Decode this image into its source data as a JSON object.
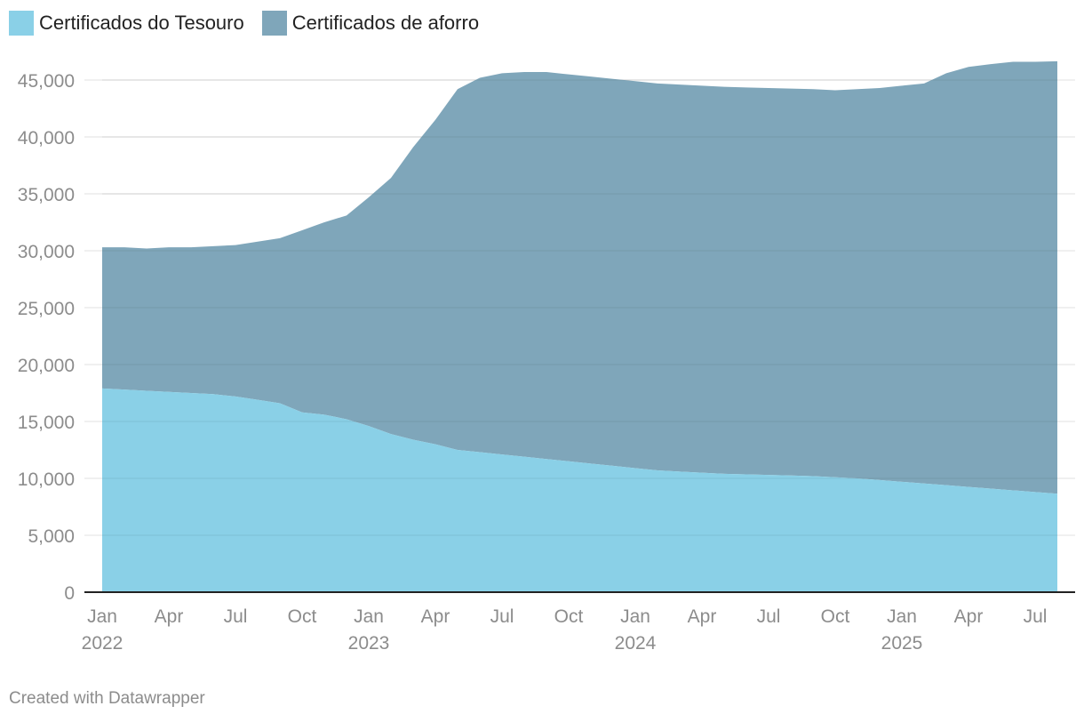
{
  "chart_data": {
    "type": "area",
    "stacked": true,
    "title": "",
    "xlabel": "",
    "ylabel": "",
    "ylim": [
      0,
      47000
    ],
    "grid": true,
    "legend_position": "top-left",
    "x": [
      "2022-01",
      "2022-02",
      "2022-03",
      "2022-04",
      "2022-05",
      "2022-06",
      "2022-07",
      "2022-08",
      "2022-09",
      "2022-10",
      "2022-11",
      "2022-12",
      "2023-01",
      "2023-02",
      "2023-03",
      "2023-04",
      "2023-05",
      "2023-06",
      "2023-07",
      "2023-08",
      "2023-09",
      "2023-10",
      "2023-11",
      "2023-12",
      "2024-01",
      "2024-02",
      "2024-03",
      "2024-04",
      "2024-05",
      "2024-06",
      "2024-07",
      "2024-08",
      "2024-09",
      "2024-10",
      "2024-11",
      "2024-12",
      "2025-01",
      "2025-02",
      "2025-03",
      "2025-04",
      "2025-05",
      "2025-06",
      "2025-07",
      "2025-08"
    ],
    "series": [
      {
        "name": "Certificados do Tesouro",
        "color": "#8ad0e7",
        "values": [
          17900,
          17800,
          17700,
          17600,
          17500,
          17400,
          17200,
          16900,
          16600,
          15800,
          15600,
          15200,
          14600,
          13900,
          13400,
          13000,
          12500,
          12300,
          12100,
          11900,
          11700,
          11500,
          11300,
          11100,
          10900,
          10700,
          10600,
          10500,
          10400,
          10350,
          10300,
          10250,
          10200,
          10100,
          10000,
          9850,
          9700,
          9550,
          9400,
          9250,
          9100,
          8950,
          8800,
          8650
        ]
      },
      {
        "name": "Certificados de aforro",
        "color": "#7fa6ba",
        "values": [
          12400,
          12500,
          12500,
          12700,
          12800,
          13000,
          13300,
          13900,
          14500,
          16000,
          16900,
          17900,
          20100,
          22500,
          25700,
          28500,
          31700,
          32900,
          33500,
          33800,
          34000,
          34000,
          34000,
          34000,
          34000,
          34000,
          34000,
          34000,
          34000,
          34000,
          34000,
          34000,
          34000,
          34000,
          34200,
          34450,
          34800,
          35150,
          36200,
          36900,
          37300,
          37650,
          37800,
          38000
        ]
      }
    ],
    "y_ticks": [
      0,
      5000,
      10000,
      15000,
      20000,
      25000,
      30000,
      35000,
      40000,
      45000
    ],
    "y_tick_labels": [
      "0",
      "5,000",
      "10,000",
      "15,000",
      "20,000",
      "25,000",
      "30,000",
      "35,000",
      "40,000",
      "45,000"
    ],
    "x_ticks": [
      {
        "month": "2022-01",
        "label": "Jan",
        "year": "2022"
      },
      {
        "month": "2022-04",
        "label": "Apr",
        "year": ""
      },
      {
        "month": "2022-07",
        "label": "Jul",
        "year": ""
      },
      {
        "month": "2022-10",
        "label": "Oct",
        "year": ""
      },
      {
        "month": "2023-01",
        "label": "Jan",
        "year": "2023"
      },
      {
        "month": "2023-04",
        "label": "Apr",
        "year": ""
      },
      {
        "month": "2023-07",
        "label": "Jul",
        "year": ""
      },
      {
        "month": "2023-10",
        "label": "Oct",
        "year": ""
      },
      {
        "month": "2024-01",
        "label": "Jan",
        "year": "2024"
      },
      {
        "month": "2024-04",
        "label": "Apr",
        "year": ""
      },
      {
        "month": "2024-07",
        "label": "Jul",
        "year": ""
      },
      {
        "month": "2024-10",
        "label": "Oct",
        "year": ""
      },
      {
        "month": "2025-01",
        "label": "Jan",
        "year": "2025"
      },
      {
        "month": "2025-04",
        "label": "Apr",
        "year": ""
      },
      {
        "month": "2025-07",
        "label": "Jul",
        "year": ""
      }
    ]
  },
  "legend": {
    "items": [
      {
        "label": "Certificados do Tesouro",
        "color": "#8ad0e7"
      },
      {
        "label": "Certificados de aforro",
        "color": "#7fa6ba"
      }
    ]
  },
  "footer": {
    "credit": "Created with Datawrapper"
  }
}
